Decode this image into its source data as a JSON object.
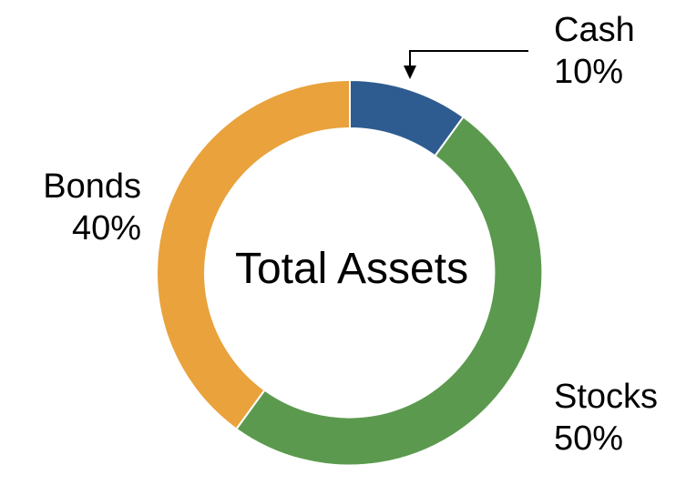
{
  "chart_data": {
    "type": "pie",
    "variant": "donut",
    "title": "Total Assets",
    "direction": "clockwise",
    "start_angle_deg": 0,
    "inner_radius_ratio": 0.75,
    "legend_position": "none",
    "background_color": "#FFFFFF",
    "seam_color": "#FFFFFF",
    "slices": [
      {
        "label": "Cash",
        "value": 10,
        "percent_label": "10%",
        "color": "#2F5C90"
      },
      {
        "label": "Stocks",
        "value": 50,
        "percent_label": "50%",
        "color": "#5B9A4E"
      },
      {
        "label": "Bonds",
        "value": 40,
        "percent_label": "40%",
        "color": "#E9A23C"
      }
    ],
    "annotations": [
      {
        "target": "Cash",
        "shape": "elbow-arrow",
        "color": "#000000"
      }
    ]
  }
}
